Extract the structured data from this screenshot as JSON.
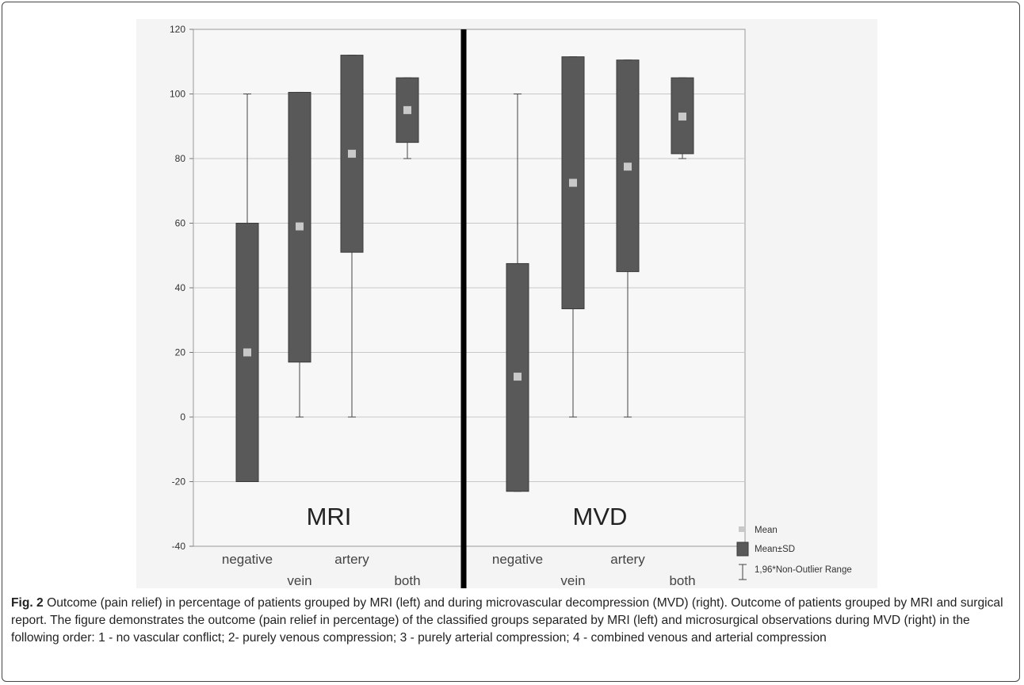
{
  "chart_data": {
    "type": "box",
    "y_ticks": [
      -40,
      -20,
      0,
      20,
      40,
      60,
      80,
      100,
      120
    ],
    "ylim": [
      -40,
      120
    ],
    "panels": [
      {
        "label": "MRI",
        "categories": [
          "negative",
          "vein",
          "artery",
          "both"
        ],
        "mean": [
          20,
          59,
          81.5,
          95
        ],
        "sd_low": [
          -20,
          17,
          51,
          85
        ],
        "sd_high": [
          60,
          100.5,
          112,
          105
        ],
        "range_low": [
          -20,
          0,
          0,
          80
        ],
        "range_high": [
          100,
          100.5,
          112,
          105
        ]
      },
      {
        "label": "MVD",
        "categories": [
          "negative",
          "vein",
          "artery",
          "both"
        ],
        "mean": [
          12.5,
          72.5,
          77.5,
          93
        ],
        "sd_low": [
          -23,
          33.5,
          45,
          81.5
        ],
        "sd_high": [
          47.5,
          111.5,
          110.5,
          105
        ],
        "range_low": [
          -23,
          0,
          0,
          80
        ],
        "range_high": [
          100,
          111.5,
          110.5,
          105
        ]
      }
    ],
    "legend": [
      "Mean",
      "Mean±SD",
      "1,96*Non-Outlier Range"
    ],
    "legend_position": "bottom-right",
    "grid": true,
    "colors": {
      "box": "#595959",
      "mean": "#c9c9c9",
      "whisker": "#444444",
      "divider": "#000000",
      "grid": "#c8c8c8",
      "plot_bg": "#f7f7f7"
    }
  },
  "caption": {
    "fig_label": "Fig. 2",
    "text": "Outcome (pain relief) in percentage of patients grouped by MRI (left) and during microvascular decompression (MVD) (right). Outcome of patients grouped by MRI and surgical report. The figure demonstrates the outcome (pain relief in percentage) of the classified groups separated by MRI (left) and microsurgical observations during MVD (right) in the following order: 1 - no vascular conflict; 2- purely venous compression; 3 - purely arterial compression; 4 - combined venous and arterial compression"
  }
}
